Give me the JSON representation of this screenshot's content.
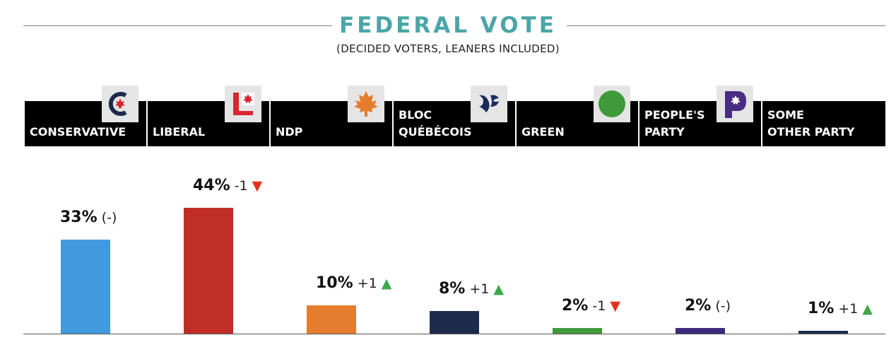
{
  "header": {
    "title": "FEDERAL VOTE",
    "subtitle": "(DECIDED VOTERS, LEANERS INCLUDED)"
  },
  "parties": [
    {
      "label": "CONSERVATIVE",
      "icon": "conservative-logo-icon"
    },
    {
      "label": "LIBERAL",
      "icon": "liberal-logo-icon"
    },
    {
      "label": "NDP",
      "icon": "ndp-maple-leaf-icon"
    },
    {
      "label": "BLOC\nQUÉBÉCOIS",
      "icon": "bloc-quebecois-logo-icon"
    },
    {
      "label": "GREEN",
      "icon": "green-party-circle-icon"
    },
    {
      "label": "PEOPLE'S\nPARTY",
      "icon": "peoples-party-logo-icon"
    },
    {
      "label": "SOME\nOTHER PARTY",
      "icon": ""
    }
  ],
  "chart_data": {
    "type": "bar",
    "categories": [
      "CONSERVATIVE",
      "LIBERAL",
      "NDP",
      "BLOC QUÉBÉCOIS",
      "GREEN",
      "PEOPLE'S PARTY",
      "SOME OTHER PARTY"
    ],
    "values": [
      33,
      44,
      10,
      8,
      2,
      2,
      1
    ],
    "value_labels": [
      "33%",
      "44%",
      "10%",
      "8%",
      "2%",
      "2%",
      "1%"
    ],
    "changes": [
      "(-)",
      "-1",
      "+1",
      "+1",
      "-1",
      "(-)",
      "+1"
    ],
    "change_direction": [
      "none",
      "down",
      "up",
      "up",
      "down",
      "none",
      "up"
    ],
    "colors": [
      "#4299dd",
      "#c12e26",
      "#e67d2e",
      "#1d2b4c",
      "#419a3a",
      "#3e2a7c",
      "#1d2b4c"
    ],
    "up_color": "#3ea84a",
    "down_color": "#e0331f",
    "ylim": [
      0,
      50
    ],
    "xlabel": "",
    "ylabel": ""
  }
}
